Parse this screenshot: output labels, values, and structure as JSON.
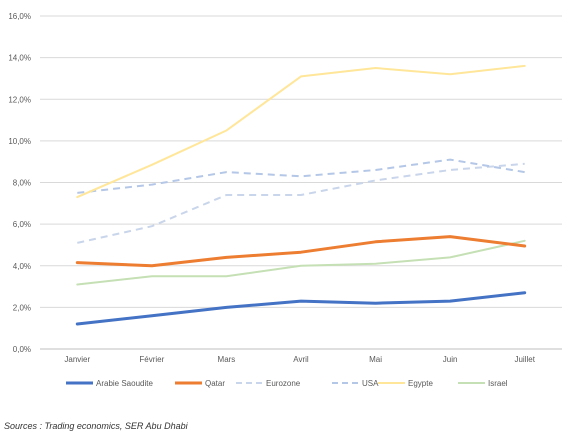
{
  "chart_data": {
    "type": "line",
    "categories": [
      "Janvier",
      "Février",
      "Mars",
      "Avril",
      "Mai",
      "Juin",
      "Juillet"
    ],
    "ylim": [
      0,
      16
    ],
    "yticks": [
      "0,0%",
      "2,0%",
      "4,0%",
      "6,0%",
      "8,0%",
      "10,0%",
      "12,0%",
      "14,0%",
      "16,0%"
    ],
    "grid": true,
    "legend_position": "bottom",
    "series": [
      {
        "name": "Arabie Saoudite",
        "values": [
          1.2,
          1.6,
          2.0,
          2.3,
          2.2,
          2.3,
          2.7
        ],
        "color": "#4472C4",
        "style": "solid",
        "width": 3
      },
      {
        "name": "Qatar",
        "values": [
          4.15,
          4.0,
          4.4,
          4.65,
          5.15,
          5.4,
          4.95
        ],
        "color": "#ED7D31",
        "style": "solid",
        "width": 3
      },
      {
        "name": "Eurozone",
        "values": [
          5.1,
          5.9,
          7.4,
          7.4,
          8.1,
          8.6,
          8.9
        ],
        "color": "#C9D5EA",
        "style": "dashed",
        "width": 2
      },
      {
        "name": "USA",
        "values": [
          7.5,
          7.9,
          8.5,
          8.3,
          8.6,
          9.1,
          8.5
        ],
        "color": "#B4C7E7",
        "style": "dashed",
        "width": 2
      },
      {
        "name": "Egypte",
        "values": [
          7.3,
          8.85,
          10.5,
          13.1,
          13.5,
          13.2,
          13.6
        ],
        "color": "#FFE699",
        "style": "solid",
        "width": 2
      },
      {
        "name": "Israel",
        "values": [
          3.1,
          3.5,
          3.5,
          4.0,
          4.1,
          4.4,
          5.2
        ],
        "color": "#C5E0B4",
        "style": "solid",
        "width": 2
      }
    ]
  },
  "source_note": "Sources : Trading economics, SER Abu Dhabi"
}
